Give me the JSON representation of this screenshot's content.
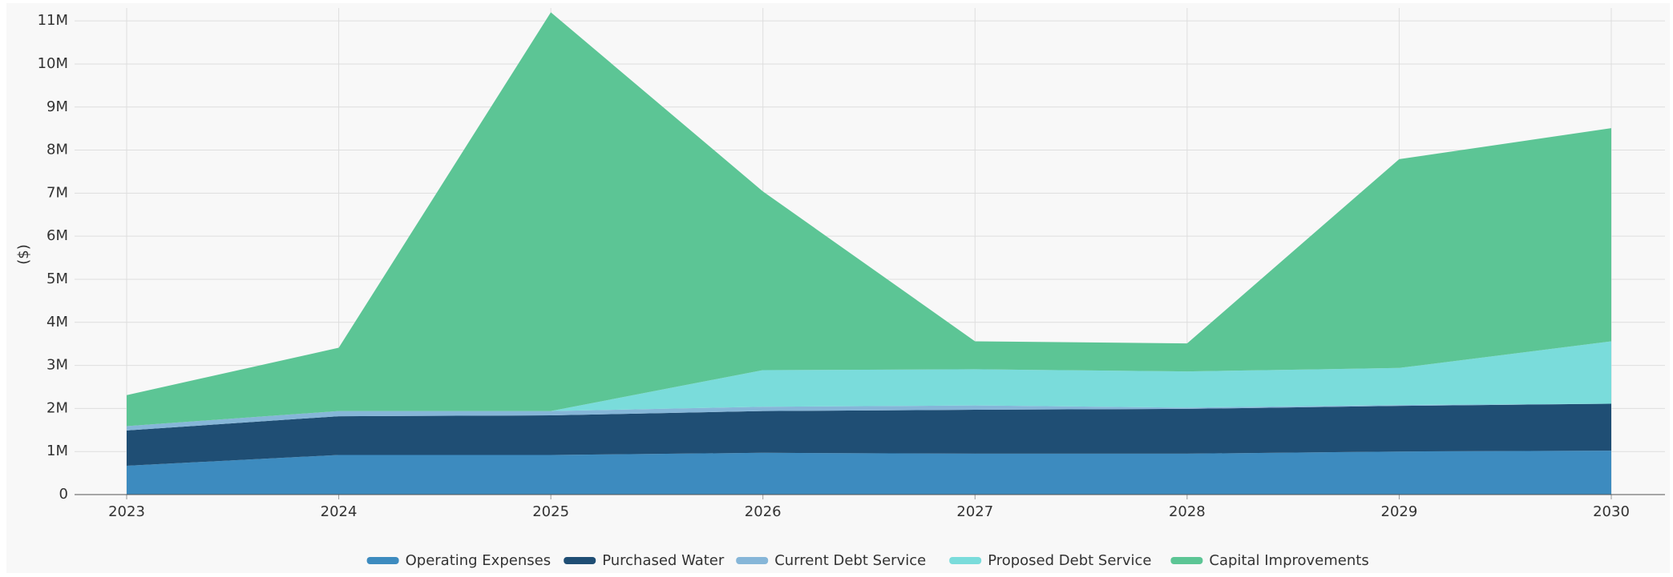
{
  "chart_data": {
    "type": "stacked-area",
    "y_label": "($)",
    "categories": [
      "2023",
      "2024",
      "2025",
      "2026",
      "2027",
      "2028",
      "2029",
      "2030"
    ],
    "series": [
      {
        "name": "Operating Expenses",
        "color": "#3d8bbf",
        "values": [
          670000,
          920000,
          920000,
          970000,
          950000,
          950000,
          1000000,
          1020000
        ]
      },
      {
        "name": "Purchased Water",
        "color": "#1f4e74",
        "values": [
          820000,
          900000,
          920000,
          970000,
          1020000,
          1040000,
          1060000,
          1090000
        ]
      },
      {
        "name": "Current Debt Service",
        "color": "#86b6d8",
        "values": [
          100000,
          120000,
          100000,
          100000,
          100000,
          30000,
          20000,
          0
        ]
      },
      {
        "name": "Proposed Debt Service",
        "color": "#7adcdb",
        "values": [
          0,
          0,
          0,
          850000,
          840000,
          840000,
          860000,
          1450000
        ]
      },
      {
        "name": "Capital Improvements",
        "color": "#5cc595",
        "values": [
          720000,
          1470000,
          9260000,
          4150000,
          650000,
          650000,
          4850000,
          4950000
        ]
      }
    ],
    "ylim": [
      0,
      11300000
    ],
    "yticks": [
      0,
      {
        "value": 1000000,
        "label": "1M"
      },
      {
        "value": 2000000,
        "label": "2M"
      },
      {
        "value": 3000000,
        "label": "3M"
      },
      {
        "value": 4000000,
        "label": "4M"
      },
      {
        "value": 5000000,
        "label": "5M"
      },
      {
        "value": 6000000,
        "label": "6M"
      },
      {
        "value": 7000000,
        "label": "7M"
      },
      {
        "value": 8000000,
        "label": "8M"
      },
      {
        "value": 9000000,
        "label": "9M"
      },
      {
        "value": 10000000,
        "label": "10M"
      },
      {
        "value": 11000000,
        "label": "11M"
      }
    ],
    "grid": true
  }
}
